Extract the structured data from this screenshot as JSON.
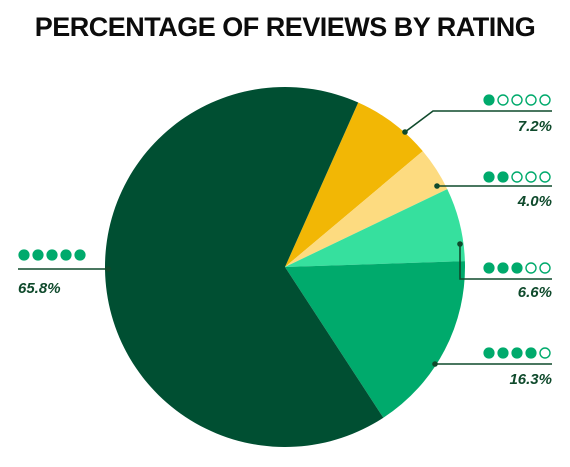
{
  "chart_data": {
    "type": "pie",
    "title": "PERCENTAGE OF REVIEWS BY RATING",
    "start_angle_deg": 24,
    "slices": [
      {
        "label": "7.2%",
        "value": 7.2,
        "rating": 1,
        "color": "#f2b705"
      },
      {
        "label": "4.0%",
        "value": 4.0,
        "rating": 2,
        "color": "#fddb80"
      },
      {
        "label": "6.6%",
        "value": 6.6,
        "rating": 3,
        "color": "#36e09e"
      },
      {
        "label": "16.3%",
        "value": 16.3,
        "rating": 4,
        "color": "#00aa6c"
      },
      {
        "label": "65.8%",
        "value": 65.8,
        "rating": 5,
        "color": "#004f32"
      }
    ],
    "legend_dot_color": "#00aa6c",
    "leader_color": "#0f4a2c"
  }
}
